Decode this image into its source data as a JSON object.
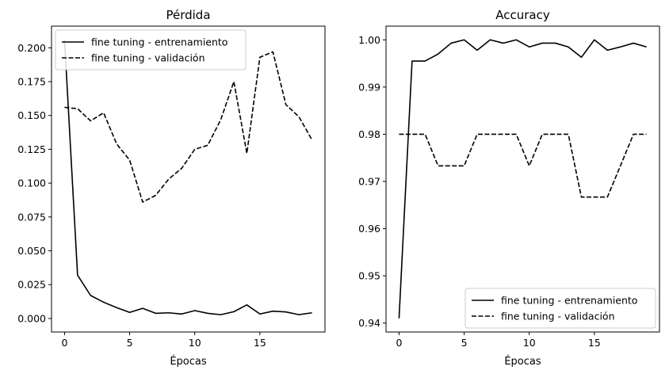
{
  "chart_data": [
    {
      "type": "line",
      "title": "Pérdida",
      "xlabel": "Épocas",
      "ylabel": "",
      "xlim": [
        -1,
        20
      ],
      "ylim": [
        -0.01,
        0.216
      ],
      "xticks": [
        0,
        5,
        10,
        15
      ],
      "xtick_labels": [
        "0",
        "5",
        "10",
        "15"
      ],
      "yticks": [
        0.0,
        0.025,
        0.05,
        0.075,
        0.1,
        0.125,
        0.15,
        0.175,
        0.2
      ],
      "ytick_labels": [
        "0.000",
        "0.025",
        "0.050",
        "0.075",
        "0.100",
        "0.125",
        "0.150",
        "0.175",
        "0.200"
      ],
      "legend_position": "top-left",
      "x": [
        0,
        1,
        2,
        3,
        4,
        5,
        6,
        7,
        8,
        9,
        10,
        11,
        12,
        13,
        14,
        15,
        16,
        17,
        18,
        19
      ],
      "series": [
        {
          "name": "fine tuning - entrenamiento",
          "style": "solid",
          "values": [
            0.206,
            0.032,
            0.017,
            0.012,
            0.008,
            0.0045,
            0.0075,
            0.0038,
            0.0042,
            0.0033,
            0.0058,
            0.0038,
            0.0028,
            0.005,
            0.01,
            0.0033,
            0.0054,
            0.0048,
            0.0028,
            0.0042
          ]
        },
        {
          "name": "fine tuning - validación",
          "style": "dashed",
          "values": [
            0.156,
            0.155,
            0.146,
            0.152,
            0.129,
            0.117,
            0.086,
            0.091,
            0.103,
            0.111,
            0.125,
            0.128,
            0.147,
            0.175,
            0.122,
            0.193,
            0.197,
            0.158,
            0.149,
            0.132
          ]
        }
      ]
    },
    {
      "type": "line",
      "title": "Accuracy",
      "xlabel": "Épocas",
      "ylabel": "",
      "xlim": [
        -1,
        20
      ],
      "ylim": [
        0.9381,
        1.0029
      ],
      "xticks": [
        0,
        5,
        10,
        15
      ],
      "xtick_labels": [
        "0",
        "5",
        "10",
        "15"
      ],
      "yticks": [
        0.94,
        0.95,
        0.96,
        0.97,
        0.98,
        0.99,
        1.0
      ],
      "ytick_labels": [
        "0.94",
        "0.95",
        "0.96",
        "0.97",
        "0.98",
        "0.99",
        "1.00"
      ],
      "legend_position": "bottom-right",
      "x": [
        0,
        1,
        2,
        3,
        4,
        5,
        6,
        7,
        8,
        9,
        10,
        11,
        12,
        13,
        14,
        15,
        16,
        17,
        18,
        19
      ],
      "series": [
        {
          "name": "fine tuning - entrenamiento",
          "style": "solid",
          "values": [
            0.941,
            0.9955,
            0.9955,
            0.997,
            0.9993,
            1.0,
            0.9978,
            1.0,
            0.9993,
            1.0,
            0.9985,
            0.9993,
            0.9993,
            0.9985,
            0.9963,
            1.0,
            0.9978,
            0.9985,
            0.9993,
            0.9985
          ]
        },
        {
          "name": "fine tuning - validación",
          "style": "dashed",
          "values": [
            0.98,
            0.98,
            0.98,
            0.9733,
            0.9733,
            0.9733,
            0.98,
            0.98,
            0.98,
            0.98,
            0.9733,
            0.98,
            0.98,
            0.98,
            0.9667,
            0.9667,
            0.9667,
            0.9733,
            0.98,
            0.98
          ]
        }
      ]
    }
  ]
}
